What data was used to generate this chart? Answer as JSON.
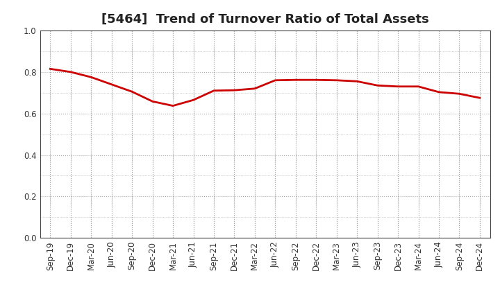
{
  "title": "[5464]  Trend of Turnover Ratio of Total Assets",
  "x_labels": [
    "Sep-19",
    "Dec-19",
    "Mar-20",
    "Jun-20",
    "Sep-20",
    "Dec-20",
    "Mar-21",
    "Jun-21",
    "Sep-21",
    "Dec-21",
    "Mar-22",
    "Jun-22",
    "Sep-22",
    "Dec-22",
    "Mar-23",
    "Jun-23",
    "Sep-23",
    "Dec-23",
    "Mar-24",
    "Jun-24",
    "Sep-24",
    "Dec-24"
  ],
  "y_values": [
    0.815,
    0.8,
    0.775,
    0.74,
    0.705,
    0.658,
    0.637,
    0.665,
    0.71,
    0.712,
    0.72,
    0.76,
    0.762,
    0.762,
    0.76,
    0.755,
    0.735,
    0.73,
    0.73,
    0.703,
    0.695,
    0.675
  ],
  "line_color": "#cc0000",
  "line_width": 2.0,
  "ylim": [
    0.0,
    1.0
  ],
  "yticks": [
    0.0,
    0.2,
    0.4,
    0.6,
    0.8,
    1.0
  ],
  "grid_color": "#aaaaaa",
  "grid_linestyle": ":",
  "plot_bg_color": "#ffffff",
  "fig_bg_color": "#ffffff",
  "title_fontsize": 13,
  "tick_fontsize": 8.5,
  "title_color": "#222222"
}
